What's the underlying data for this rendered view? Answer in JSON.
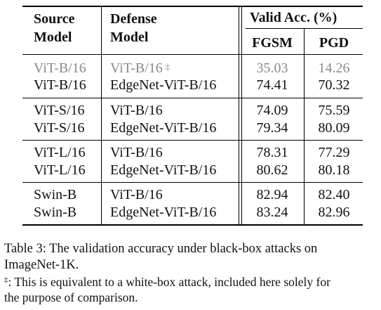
{
  "table": {
    "headers": {
      "source_line1": "Source",
      "source_line2": "Model",
      "defense_line1": "Defense",
      "defense_line2": "Model",
      "valid_acc": "Valid Acc. (%)",
      "fgsm": "FGSM",
      "pgd": "PGD"
    },
    "groups": [
      [
        {
          "source": "ViT-B/16",
          "defense": "ViT-B/16",
          "dagger": "‡",
          "fgsm": "35.03",
          "pgd": "14.26",
          "gray": true
        },
        {
          "source": "ViT-B/16",
          "defense": "EdgeNet-ViT-B/16",
          "fgsm": "74.41",
          "pgd": "70.32"
        }
      ],
      [
        {
          "source": "ViT-S/16",
          "defense": "ViT-B/16",
          "fgsm": "74.09",
          "pgd": "75.59"
        },
        {
          "source": "ViT-S/16",
          "defense": "EdgeNet-ViT-B/16",
          "fgsm": "79.34",
          "pgd": "80.09"
        }
      ],
      [
        {
          "source": "ViT-L/16",
          "defense": "ViT-B/16",
          "fgsm": "78.31",
          "pgd": "77.29"
        },
        {
          "source": "ViT-L/16",
          "defense": "EdgeNet-ViT-B/16",
          "fgsm": "80.62",
          "pgd": "80.18"
        }
      ],
      [
        {
          "source": "Swin-B",
          "defense": "ViT-B/16",
          "fgsm": "82.94",
          "pgd": "82.40"
        },
        {
          "source": "Swin-B",
          "defense": "EdgeNet-ViT-B/16",
          "fgsm": "83.24",
          "pgd": "82.96"
        }
      ]
    ]
  },
  "caption": {
    "line1": "Table 3: The validation accuracy under black-box attacks on",
    "line2": "ImageNet-1K.",
    "footnote_mark": "‡",
    "footnote_line1": ": This is equivalent to a white-box attack, included here solely for",
    "footnote_line2": "the purpose of comparison."
  }
}
